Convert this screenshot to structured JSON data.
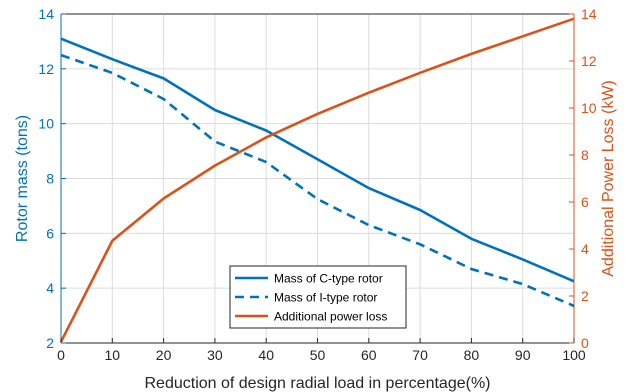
{
  "chart_data": {
    "type": "line",
    "xlabel": "Reduction of design radial load in percentage(%)",
    "ylabel_left": "Rotor mass (tons)",
    "ylabel_right": "Additional Power Loss (kW)",
    "xlim": [
      0,
      100
    ],
    "ylim_left": [
      2,
      14
    ],
    "ylim_right": [
      0,
      14
    ],
    "x_ticks": [
      0,
      10,
      20,
      30,
      40,
      50,
      60,
      70,
      80,
      90,
      100
    ],
    "y_left_ticks": [
      2,
      4,
      6,
      8,
      10,
      12,
      14
    ],
    "y_right_ticks": [
      0,
      2,
      4,
      6,
      8,
      10,
      12,
      14
    ],
    "grid": true,
    "legend_position": "bottom-center",
    "x": [
      0,
      10,
      20,
      30,
      40,
      50,
      60,
      70,
      80,
      90,
      100
    ],
    "series": [
      {
        "name": "Mass of C-type rotor",
        "axis": "left",
        "style": "solid",
        "color": "#0072BD",
        "values": [
          13.1,
          12.35,
          11.65,
          10.5,
          9.75,
          8.7,
          7.65,
          6.85,
          5.8,
          5.05,
          4.25
        ]
      },
      {
        "name": "Mass of I-type rotor",
        "axis": "left",
        "style": "dashed",
        "color": "#0072BD",
        "values": [
          12.5,
          11.85,
          10.9,
          9.35,
          8.6,
          7.25,
          6.3,
          5.6,
          4.7,
          4.15,
          3.35
        ]
      },
      {
        "name": "Additional power loss",
        "axis": "right",
        "style": "solid",
        "color": "#D95319",
        "values": [
          0.05,
          4.35,
          6.15,
          7.55,
          8.75,
          9.75,
          10.65,
          11.5,
          12.3,
          13.05,
          13.8
        ]
      }
    ],
    "colors": {
      "left_axis": "#0072BD",
      "right_axis": "#D95319",
      "axis": "#262626"
    }
  }
}
